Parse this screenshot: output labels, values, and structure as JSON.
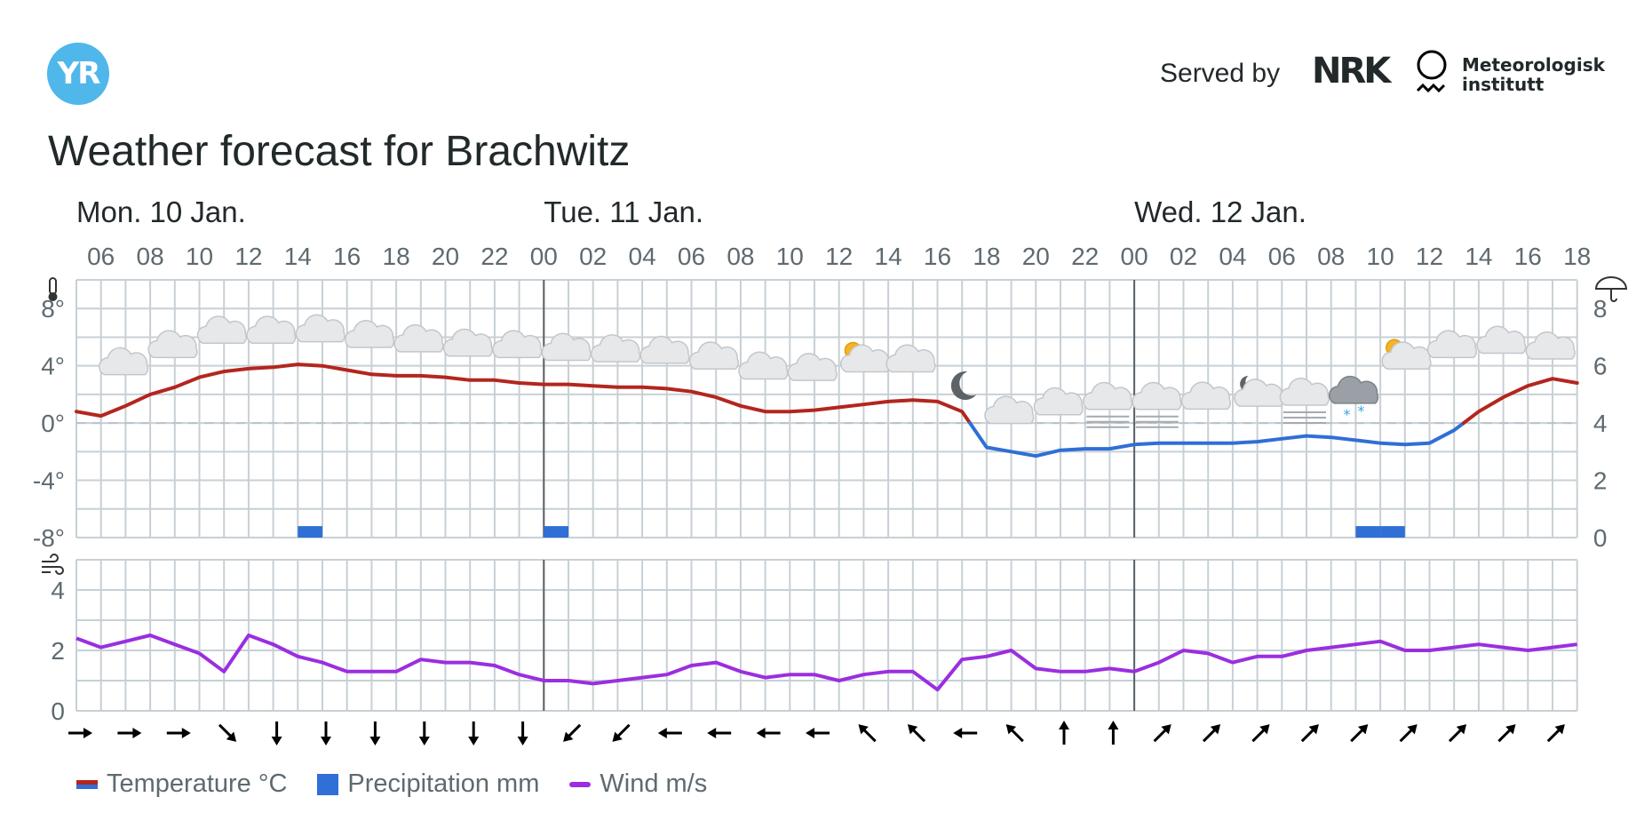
{
  "header": {
    "logo_text": "YR",
    "served_by": "Served by",
    "nrk_logo": "NRK",
    "met_line1": "Meteorologisk",
    "met_line2": "institutt",
    "title": "Weather forecast for Brachwitz"
  },
  "days": [
    "Mon. 10 Jan.",
    "Tue. 11 Jan.",
    "Wed. 12 Jan."
  ],
  "hour_labels": [
    "06",
    "08",
    "10",
    "12",
    "14",
    "16",
    "18",
    "20",
    "22",
    "00",
    "02",
    "04",
    "06",
    "08",
    "10",
    "12",
    "14",
    "16",
    "18",
    "20",
    "22",
    "00",
    "02",
    "04",
    "06",
    "08",
    "10",
    "12",
    "14",
    "16",
    "18"
  ],
  "legend": {
    "temperature": "Temperature °C",
    "precipitation": "Precipitation mm",
    "wind": "Wind m/s"
  },
  "colors": {
    "temp_warm": "#b3261e",
    "temp_cold": "#2f6fd6",
    "precip": "#2f6fd6",
    "wind": "#9b2ee0",
    "grid": "#c7d0d6",
    "day_line": "#5a6268"
  },
  "chart_data": [
    {
      "type": "line",
      "title": "",
      "x_unit": "hours from Mon. 10 Jan. 05:00",
      "series": [
        {
          "name": "Temperature °C",
          "x": [
            0,
            1,
            2,
            3,
            4,
            5,
            6,
            7,
            8,
            9,
            10,
            11,
            12,
            13,
            14,
            15,
            16,
            17,
            18,
            19,
            20,
            21,
            22,
            23,
            24,
            25,
            26,
            27,
            28,
            29,
            30,
            31,
            32,
            33,
            34,
            35,
            36,
            37,
            38,
            39,
            40,
            41,
            42,
            43,
            44,
            45,
            46,
            47,
            48,
            49,
            50,
            51,
            52,
            53,
            54,
            55,
            56,
            57,
            58,
            59,
            60,
            61
          ],
          "values": [
            0.8,
            0.5,
            1.2,
            2.0,
            2.5,
            3.2,
            3.6,
            3.8,
            3.9,
            4.1,
            4.0,
            3.7,
            3.4,
            3.3,
            3.3,
            3.2,
            3.0,
            3.0,
            2.8,
            2.7,
            2.7,
            2.6,
            2.5,
            2.5,
            2.4,
            2.2,
            1.8,
            1.2,
            0.8,
            0.8,
            0.9,
            1.1,
            1.3,
            1.5,
            1.6,
            1.5,
            0.8,
            -1.7,
            -2.0,
            -2.3,
            -1.9,
            -1.8,
            -1.8,
            -1.5,
            -1.4,
            -1.4,
            -1.4,
            -1.4,
            -1.3,
            -1.1,
            -0.9,
            -1.0,
            -1.2,
            -1.4,
            -1.5,
            -1.4,
            -0.5,
            0.8,
            1.8,
            2.6,
            3.1,
            2.8
          ],
          "ylim": [
            -8,
            10
          ],
          "yticks": [
            "8°",
            "4°",
            "0°",
            "-4°",
            "-8°"
          ]
        },
        {
          "name": "Precipitation mm",
          "type": "bar",
          "x": [
            9,
            19,
            52,
            53
          ],
          "values": [
            0.1,
            0.1,
            0.1,
            0.1
          ],
          "ylim": [
            0,
            9
          ],
          "yticks": [
            "8",
            "6",
            "4",
            "2",
            "0"
          ]
        }
      ],
      "symbols": [
        {
          "x": 2,
          "icon": "cloud-icon",
          "temp": 4.0
        },
        {
          "x": 4,
          "icon": "cloud-icon",
          "temp": 5.2
        },
        {
          "x": 6,
          "icon": "cloud-icon",
          "temp": 6.2
        },
        {
          "x": 8,
          "icon": "cloud-icon",
          "temp": 6.2
        },
        {
          "x": 10,
          "icon": "cloud-icon",
          "temp": 6.3
        },
        {
          "x": 12,
          "icon": "cloud-icon",
          "temp": 5.9
        },
        {
          "x": 14,
          "icon": "cloud-icon",
          "temp": 5.6
        },
        {
          "x": 16,
          "icon": "cloud-icon",
          "temp": 5.3
        },
        {
          "x": 18,
          "icon": "cloud-icon",
          "temp": 5.2
        },
        {
          "x": 20,
          "icon": "cloud-icon",
          "temp": 5.0
        },
        {
          "x": 22,
          "icon": "cloud-icon",
          "temp": 4.9
        },
        {
          "x": 24,
          "icon": "cloud-icon",
          "temp": 4.8
        },
        {
          "x": 26,
          "icon": "cloud-icon",
          "temp": 4.4
        },
        {
          "x": 28,
          "icon": "cloud-icon",
          "temp": 3.7
        },
        {
          "x": 30,
          "icon": "cloud-icon",
          "temp": 3.6
        },
        {
          "x": 32,
          "icon": "partly-cloudy-day-icon",
          "temp": 4.2
        },
        {
          "x": 34,
          "icon": "cloud-icon",
          "temp": 4.2
        },
        {
          "x": 36,
          "icon": "moon-icon",
          "temp": 2.6
        },
        {
          "x": 38,
          "icon": "cloud-icon",
          "temp": 0.6
        },
        {
          "x": 40,
          "icon": "cloud-icon",
          "temp": 1.2
        },
        {
          "x": 42,
          "icon": "fog-icon",
          "temp": 1.2
        },
        {
          "x": 44,
          "icon": "fog-icon",
          "temp": 1.2
        },
        {
          "x": 46,
          "icon": "cloud-icon",
          "temp": 1.6
        },
        {
          "x": 48,
          "icon": "partly-cloudy-night-icon",
          "temp": 1.8
        },
        {
          "x": 50,
          "icon": "fog-icon",
          "temp": 1.5
        },
        {
          "x": 52,
          "icon": "light-snow-icon",
          "temp": 2.0
        },
        {
          "x": 54,
          "icon": "partly-cloudy-day-icon",
          "temp": 4.4
        },
        {
          "x": 56,
          "icon": "cloud-icon",
          "temp": 5.2
        },
        {
          "x": 58,
          "icon": "cloud-icon",
          "temp": 5.5
        },
        {
          "x": 60,
          "icon": "cloud-icon",
          "temp": 5.1
        }
      ]
    },
    {
      "type": "line",
      "title": "",
      "series": [
        {
          "name": "Wind m/s",
          "x": [
            0,
            1,
            2,
            3,
            4,
            5,
            6,
            7,
            8,
            9,
            10,
            11,
            12,
            13,
            14,
            15,
            16,
            17,
            18,
            19,
            20,
            21,
            22,
            23,
            24,
            25,
            26,
            27,
            28,
            29,
            30,
            31,
            32,
            33,
            34,
            35,
            36,
            37,
            38,
            39,
            40,
            41,
            42,
            43,
            44,
            45,
            46,
            47,
            48,
            49,
            50,
            51,
            52,
            53,
            54,
            55,
            56,
            57,
            58,
            59,
            60,
            61
          ],
          "values": [
            2.4,
            2.1,
            2.3,
            2.5,
            2.2,
            1.9,
            1.3,
            2.5,
            2.2,
            1.8,
            1.6,
            1.3,
            1.3,
            1.3,
            1.7,
            1.6,
            1.6,
            1.5,
            1.2,
            1.0,
            1.0,
            0.9,
            1.0,
            1.1,
            1.2,
            1.5,
            1.6,
            1.3,
            1.1,
            1.2,
            1.2,
            1.0,
            1.2,
            1.3,
            1.3,
            0.7,
            1.7,
            1.8,
            2.0,
            1.4,
            1.3,
            1.3,
            1.4,
            1.3,
            1.6,
            2.0,
            1.9,
            1.6,
            1.8,
            1.8,
            2.0,
            2.1,
            2.2,
            2.3,
            2.0,
            2.0,
            2.1,
            2.2,
            2.1,
            2.0,
            2.1,
            2.2
          ],
          "ylim": [
            0,
            5
          ],
          "yticks": [
            "4",
            "2",
            "0"
          ]
        }
      ],
      "wind_direction_arrows": [
        {
          "x": 0,
          "to": "E"
        },
        {
          "x": 2,
          "to": "E"
        },
        {
          "x": 4,
          "to": "E"
        },
        {
          "x": 6,
          "to": "SE"
        },
        {
          "x": 8,
          "to": "S"
        },
        {
          "x": 10,
          "to": "S"
        },
        {
          "x": 12,
          "to": "S"
        },
        {
          "x": 14,
          "to": "S"
        },
        {
          "x": 16,
          "to": "S"
        },
        {
          "x": 18,
          "to": "S"
        },
        {
          "x": 20,
          "to": "SW"
        },
        {
          "x": 22,
          "to": "SW"
        },
        {
          "x": 24,
          "to": "W"
        },
        {
          "x": 26,
          "to": "W"
        },
        {
          "x": 28,
          "to": "W"
        },
        {
          "x": 30,
          "to": "W"
        },
        {
          "x": 32,
          "to": "NW"
        },
        {
          "x": 34,
          "to": "NW"
        },
        {
          "x": 36,
          "to": "W"
        },
        {
          "x": 38,
          "to": "NW"
        },
        {
          "x": 40,
          "to": "N"
        },
        {
          "x": 42,
          "to": "N"
        },
        {
          "x": 44,
          "to": "NE"
        },
        {
          "x": 46,
          "to": "NE"
        },
        {
          "x": 48,
          "to": "NE"
        },
        {
          "x": 50,
          "to": "NE"
        },
        {
          "x": 52,
          "to": "NE"
        },
        {
          "x": 54,
          "to": "NE"
        },
        {
          "x": 56,
          "to": "NE"
        },
        {
          "x": 58,
          "to": "NE"
        },
        {
          "x": 60,
          "to": "NE"
        }
      ]
    }
  ]
}
